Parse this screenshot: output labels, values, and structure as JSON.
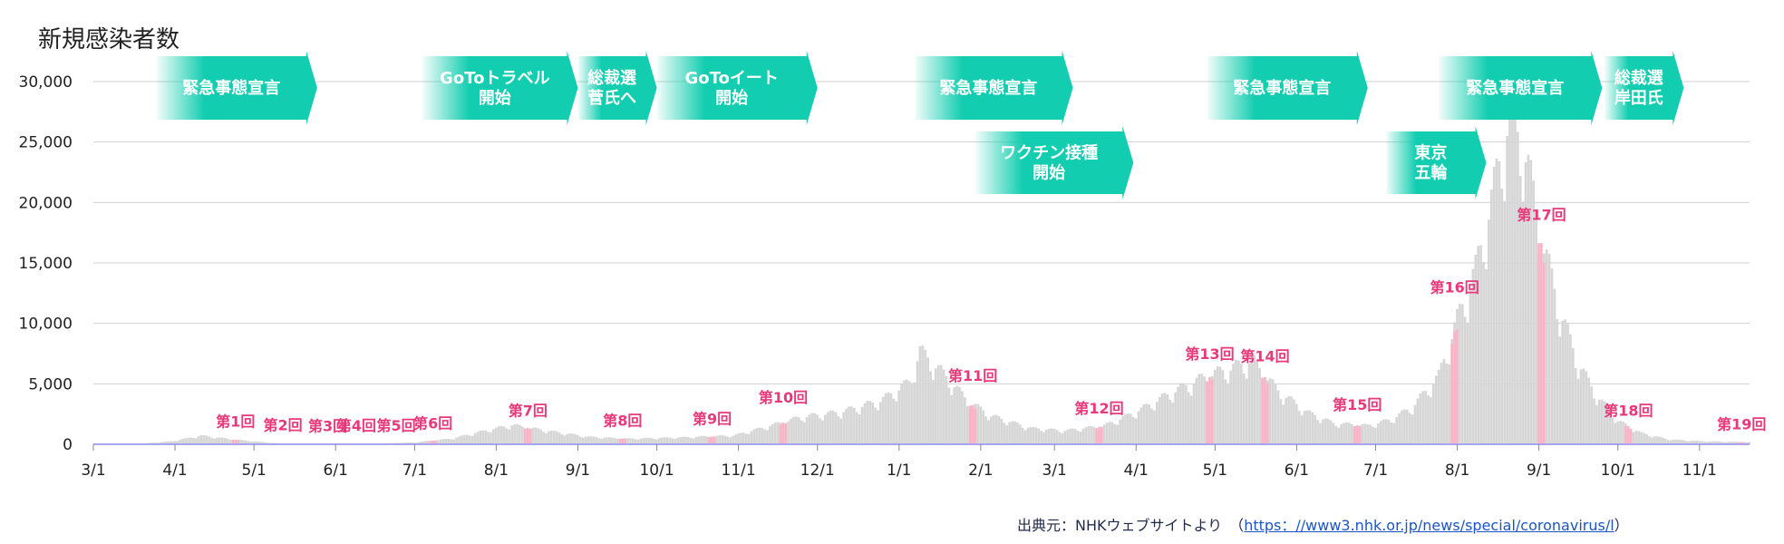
{
  "chart_data": {
    "type": "bar",
    "title": "新規感染者数",
    "ylim": [
      0,
      30000
    ],
    "yticks": [
      {
        "value": 0,
        "label": "0"
      },
      {
        "value": 5000,
        "label": "5,000"
      },
      {
        "value": 10000,
        "label": "10,000"
      },
      {
        "value": 15000,
        "label": "15,000"
      },
      {
        "value": 20000,
        "label": "20,000"
      },
      {
        "value": 25000,
        "label": "25,000"
      },
      {
        "value": 30000,
        "label": "30,000"
      }
    ],
    "x_start": "2020-03-01",
    "x_end": "2021-11-20",
    "xticks": [
      {
        "date": "2020-03-01",
        "label": "3/1"
      },
      {
        "date": "2020-04-01",
        "label": "4/1"
      },
      {
        "date": "2020-05-01",
        "label": "5/1"
      },
      {
        "date": "2020-06-01",
        "label": "6/1"
      },
      {
        "date": "2020-07-01",
        "label": "7/1"
      },
      {
        "date": "2020-08-01",
        "label": "8/1"
      },
      {
        "date": "2020-09-01",
        "label": "9/1"
      },
      {
        "date": "2020-10-01",
        "label": "10/1"
      },
      {
        "date": "2020-11-01",
        "label": "11/1"
      },
      {
        "date": "2020-12-01",
        "label": "12/1"
      },
      {
        "date": "2021-01-01",
        "label": "1/1"
      },
      {
        "date": "2021-02-01",
        "label": "2/1"
      },
      {
        "date": "2021-03-01",
        "label": "3/1"
      },
      {
        "date": "2021-04-01",
        "label": "4/1"
      },
      {
        "date": "2021-05-01",
        "label": "5/1"
      },
      {
        "date": "2021-06-01",
        "label": "6/1"
      },
      {
        "date": "2021-07-01",
        "label": "7/1"
      },
      {
        "date": "2021-08-01",
        "label": "8/1"
      },
      {
        "date": "2021-09-01",
        "label": "9/1"
      },
      {
        "date": "2021-10-01",
        "label": "10/1"
      },
      {
        "date": "2021-11-01",
        "label": "11/1"
      }
    ],
    "daily_cases": [
      [
        "2020-03-01",
        20
      ],
      [
        "2020-03-20",
        60
      ],
      [
        "2020-03-31",
        250
      ],
      [
        "2020-04-11",
        700
      ],
      [
        "2020-04-25",
        350
      ],
      [
        "2020-05-10",
        80
      ],
      [
        "2020-05-31",
        30
      ],
      [
        "2020-06-20",
        70
      ],
      [
        "2020-07-01",
        150
      ],
      [
        "2020-07-15",
        450
      ],
      [
        "2020-07-28",
        1100
      ],
      [
        "2020-08-07",
        1550
      ],
      [
        "2020-08-20",
        1100
      ],
      [
        "2020-09-05",
        600
      ],
      [
        "2020-09-20",
        450
      ],
      [
        "2020-10-10",
        550
      ],
      [
        "2020-10-30",
        700
      ],
      [
        "2020-11-10",
        1300
      ],
      [
        "2020-11-25",
        2200
      ],
      [
        "2020-12-10",
        2600
      ],
      [
        "2020-12-25",
        3500
      ],
      [
        "2021-01-05",
        5000
      ],
      [
        "2021-01-09",
        7500
      ],
      [
        "2021-01-14",
        6500
      ],
      [
        "2021-01-20",
        5200
      ],
      [
        "2021-01-27",
        3500
      ],
      [
        "2021-02-05",
        2300
      ],
      [
        "2021-02-20",
        1300
      ],
      [
        "2021-03-05",
        1100
      ],
      [
        "2021-03-20",
        1500
      ],
      [
        "2021-04-01",
        2600
      ],
      [
        "2021-04-15",
        4200
      ],
      [
        "2021-04-28",
        5500
      ],
      [
        "2021-05-10",
        6300
      ],
      [
        "2021-05-15",
        6800
      ],
      [
        "2021-05-25",
        4300
      ],
      [
        "2021-06-05",
        2600
      ],
      [
        "2021-06-15",
        1700
      ],
      [
        "2021-06-28",
        1500
      ],
      [
        "2021-07-07",
        2000
      ],
      [
        "2021-07-15",
        3000
      ],
      [
        "2021-07-25",
        5500
      ],
      [
        "2021-08-01",
        10000
      ],
      [
        "2021-08-08",
        14000
      ],
      [
        "2021-08-14",
        19500
      ],
      [
        "2021-08-20",
        25500
      ],
      [
        "2021-08-26",
        24500
      ],
      [
        "2021-09-01",
        17500
      ],
      [
        "2021-09-08",
        11500
      ],
      [
        "2021-09-15",
        7000
      ],
      [
        "2021-09-22",
        4200
      ],
      [
        "2021-10-01",
        1900
      ],
      [
        "2021-10-10",
        900
      ],
      [
        "2021-10-20",
        400
      ],
      [
        "2021-11-01",
        250
      ],
      [
        "2021-11-20",
        170
      ]
    ],
    "wave_labels": [
      {
        "label": "第1回",
        "date": "2020-04-24",
        "value": 400
      },
      {
        "label": "第2回",
        "date": "2020-05-12",
        "value": 100
      },
      {
        "label": "第3回",
        "date": "2020-05-29",
        "value": 40
      },
      {
        "label": "第4回",
        "date": "2020-06-09",
        "value": 60
      },
      {
        "label": "第5回",
        "date": "2020-06-24",
        "value": 60
      },
      {
        "label": "第6回",
        "date": "2020-07-08",
        "value": 250
      },
      {
        "label": "第7回",
        "date": "2020-08-13",
        "value": 1300
      },
      {
        "label": "第8回",
        "date": "2020-09-18",
        "value": 500
      },
      {
        "label": "第9回",
        "date": "2020-10-22",
        "value": 650
      },
      {
        "label": "第10回",
        "date": "2020-11-18",
        "value": 2400
      },
      {
        "label": "第11回",
        "date": "2021-01-29",
        "value": 4200
      },
      {
        "label": "第12回",
        "date": "2021-03-18",
        "value": 1500
      },
      {
        "label": "第13回",
        "date": "2021-04-29",
        "value": 6000
      },
      {
        "label": "第14回",
        "date": "2021-05-20",
        "value": 5800
      },
      {
        "label": "第15回",
        "date": "2021-06-24",
        "value": 1800
      },
      {
        "label": "第16回",
        "date": "2021-07-31",
        "value": 11500
      },
      {
        "label": "第17回",
        "date": "2021-09-02",
        "value": 17500
      },
      {
        "label": "第18回",
        "date": "2021-10-05",
        "value": 1300
      },
      {
        "label": "第19回",
        "date": "2021-11-17",
        "value": 170
      }
    ],
    "events": [
      {
        "id": "emergency-1",
        "lines": [
          "緊急事態宣言"
        ],
        "start": "2020-03-25",
        "end": "2020-05-25"
      },
      {
        "id": "goto-travel",
        "lines": [
          "GoToトラベル",
          "開始"
        ],
        "start": "2020-07-04",
        "end": "2020-09-01"
      },
      {
        "id": "suga",
        "lines": [
          "総裁選",
          "菅氏へ"
        ],
        "start": "2020-09-01",
        "end": "2020-10-01"
      },
      {
        "id": "goto-eat",
        "lines": [
          "GoToイート",
          "開始"
        ],
        "start": "2020-10-01",
        "end": "2020-12-01"
      },
      {
        "id": "emergency-2",
        "lines": [
          "緊急事態宣言"
        ],
        "start": "2021-01-07",
        "end": "2021-03-08"
      },
      {
        "id": "vaccine",
        "lines": [
          "ワクチン接種",
          "開始"
        ],
        "start": "2021-01-30",
        "end": "2021-03-31",
        "row": 2
      },
      {
        "id": "emergency-3",
        "lines": [
          "緊急事態宣言"
        ],
        "start": "2021-04-28",
        "end": "2021-06-28"
      },
      {
        "id": "tokyo-olympics",
        "lines": [
          "東京",
          "五輪"
        ],
        "start": "2021-07-05",
        "end": "2021-08-12",
        "row": 2
      },
      {
        "id": "emergency-4",
        "lines": [
          "緊急事態宣言"
        ],
        "start": "2021-07-25",
        "end": "2021-09-25"
      },
      {
        "id": "kishida",
        "lines": [
          "総裁選",
          "岸田氏"
        ],
        "start": "2021-09-26",
        "end": "2021-10-26"
      }
    ],
    "colors": {
      "bars": "#d6d6d6",
      "highlight": "#f8b4c6",
      "wave_text": "#e8397a",
      "event_arrow": "#12cdb0",
      "grid": "#d0d0d0",
      "baseline": "#a7a5f0"
    },
    "grid": true
  },
  "source": {
    "prefix": "出典元：NHKウェブサイトより　（",
    "link": "https：//www3.nhk.or.jp/news/special/coronavirus/l",
    "suffix": "）"
  }
}
